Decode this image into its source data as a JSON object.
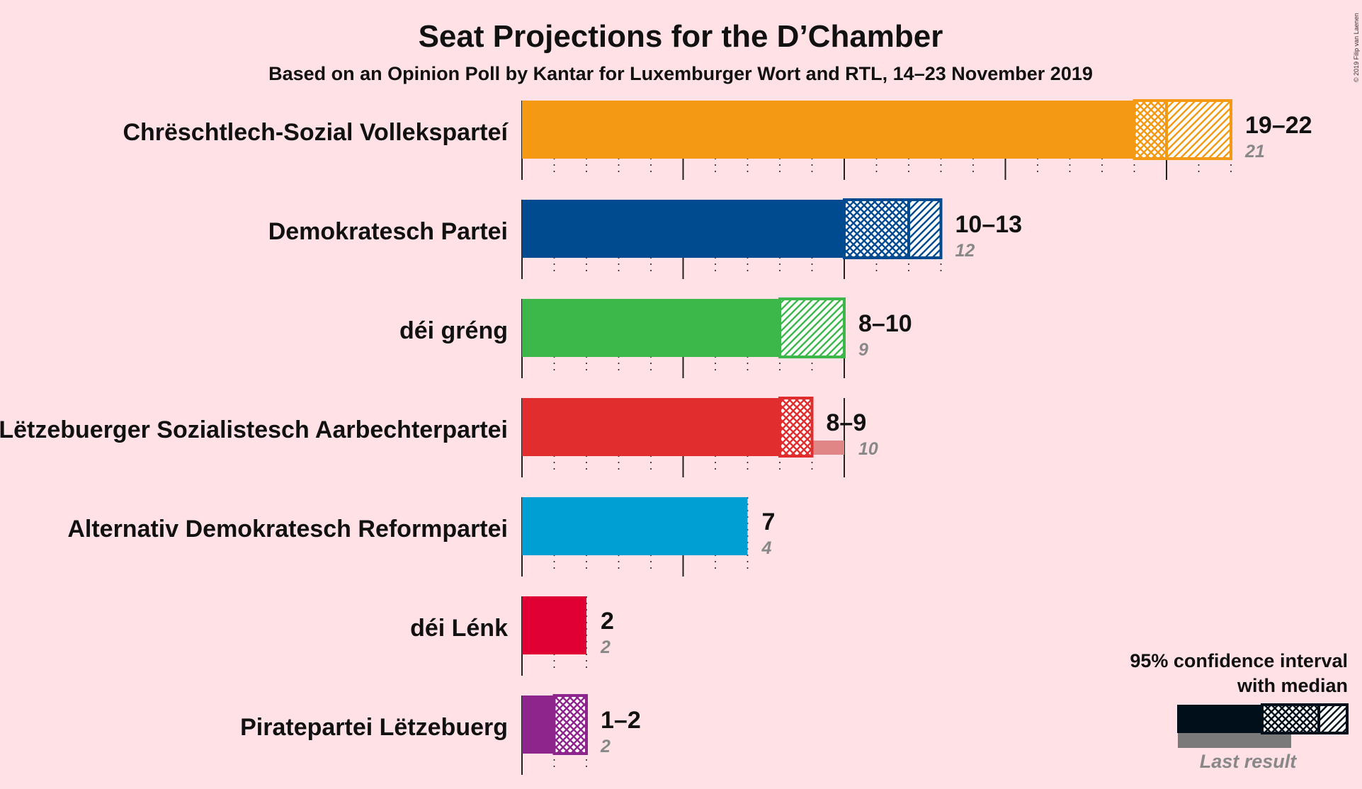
{
  "chart_data": {
    "type": "bar",
    "title": "Seat Projections for the D’Chamber",
    "subtitle": "Based on an Opinion Poll by Kantar for Luxemburger Wort and RTL, 14–23 November 2019",
    "xlim": [
      0,
      22
    ],
    "parties": [
      {
        "name": "Chrëschtlech-Sozial Volleksparteí",
        "low": 19,
        "median": 20,
        "high": 22,
        "last": 21,
        "range_label": "19–22",
        "last_label": "21",
        "color": "#F39914",
        "last_color": "#E0B17E"
      },
      {
        "name": "Demokratesch Partei",
        "low": 10,
        "median": 12,
        "high": 13,
        "last": 12,
        "range_label": "10–13",
        "last_label": "12",
        "color": "#004A90",
        "last_color": "#8294B6"
      },
      {
        "name": "déi gréng",
        "low": 8,
        "median": 8,
        "high": 10,
        "last": 9,
        "range_label": "8–10",
        "last_label": "9",
        "color": "#3CB84B",
        "last_color": "#9DBE99"
      },
      {
        "name": "Lëtzebuerger Sozialistesch Aarbechterpartei",
        "low": 8,
        "median": 9,
        "high": 9,
        "last": 10,
        "range_label": "8–9",
        "last_label": "10",
        "color": "#E12D2D",
        "last_color": "#E08686"
      },
      {
        "name": "Alternativ Demokratesch Reformpartei",
        "low": 7,
        "median": 7,
        "high": 7,
        "last": 4,
        "range_label": "7",
        "last_label": "4",
        "color": "#009FD3",
        "last_color": "#84B4C9"
      },
      {
        "name": "déi Lénk",
        "low": 2,
        "median": 2,
        "high": 2,
        "last": 2,
        "range_label": "2",
        "last_label": "2",
        "color": "#E10033",
        "last_color": "#E17A8C"
      },
      {
        "name": "Piratepartei Lëtzebuerg",
        "low": 1,
        "median": 2,
        "high": 2,
        "last": 2,
        "range_label": "1–2",
        "last_label": "2",
        "color": "#8E258D",
        "last_color": "#B889B5"
      }
    ],
    "legend": {
      "line1": "95% confidence interval",
      "line2": "with median",
      "last_result": "Last result",
      "color": "#000F19",
      "last_color": "#7A7A7A"
    },
    "copyright": "© 2019 Filip van Laenen"
  }
}
